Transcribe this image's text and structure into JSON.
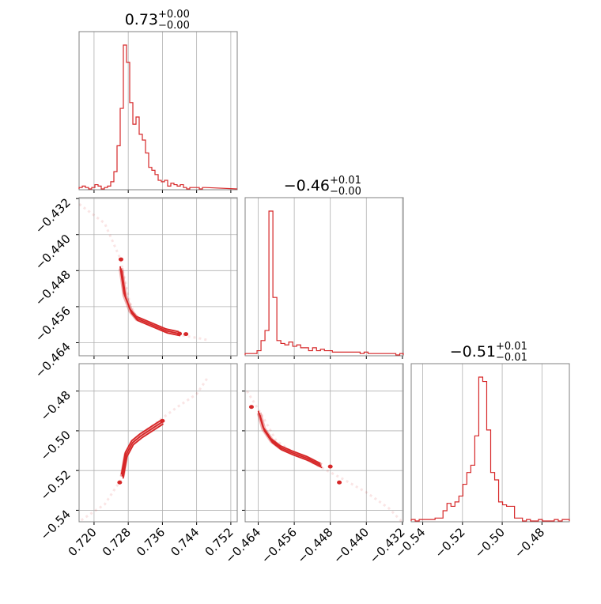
{
  "chart_data": {
    "type": "corner",
    "color": "#d62728",
    "params": [
      {
        "name": "p0",
        "title": {
          "value": "0.73",
          "upper": "+0.00",
          "lower": "−0.00"
        },
        "range": [
          0.7165,
          0.7535
        ],
        "ticks": [
          0.72,
          0.728,
          0.736,
          0.744,
          0.752
        ],
        "tick_labels": [
          "0.720",
          "0.728",
          "0.736",
          "0.744",
          "0.752"
        ],
        "hist": {
          "edges_start": 0.7165,
          "bin_width": 0.00074,
          "counts": [
            1,
            2,
            1,
            0,
            1,
            3,
            2,
            0,
            1,
            2,
            5,
            12,
            30,
            56,
            100,
            88,
            60,
            45,
            50,
            38,
            34,
            25,
            15,
            13,
            10,
            6,
            5,
            6,
            2,
            4,
            3,
            2,
            3,
            1,
            0,
            1,
            1,
            1,
            0,
            1
          ]
        }
      },
      {
        "name": "p1",
        "title": {
          "value": "−0.46",
          "upper": "+0.01",
          "lower": "−0.00"
        },
        "range": [
          -0.4669,
          -0.4318
        ],
        "ticks": [
          -0.464,
          -0.456,
          -0.448,
          -0.44,
          -0.432
        ],
        "tick_labels": [
          "−0.464",
          "−0.456",
          "−0.448",
          "−0.440",
          "−0.432"
        ],
        "hist": {
          "edges_start": -0.4669,
          "bin_width": 0.00088,
          "counts": [
            1,
            1,
            1,
            3,
            10,
            17,
            100,
            40,
            10,
            8,
            7,
            9,
            6,
            7,
            5,
            5,
            3,
            5,
            3,
            4,
            3,
            3,
            2,
            2,
            2,
            2,
            2,
            2,
            2,
            1,
            2,
            1,
            1,
            1,
            1,
            1,
            1,
            1,
            0,
            1
          ]
        }
      },
      {
        "name": "p2",
        "title": {
          "value": "−0.51",
          "upper": "+0.01",
          "lower": "−0.01"
        },
        "range": [
          -0.5458,
          -0.4662
        ],
        "ticks": [
          -0.54,
          -0.52,
          -0.5,
          -0.48
        ],
        "tick_labels": [
          "−0.54",
          "−0.52",
          "−0.50",
          "−0.48"
        ],
        "hist": {
          "edges_start": -0.5458,
          "bin_width": 0.002,
          "counts": [
            1,
            0,
            1,
            1,
            1,
            1,
            2,
            2,
            7,
            12,
            10,
            13,
            17,
            25,
            33,
            38,
            58,
            98,
            95,
            62,
            33,
            28,
            13,
            11,
            10,
            10,
            2,
            2,
            0,
            1,
            0,
            0,
            1,
            0,
            0,
            0,
            1,
            0,
            1,
            1
          ]
        }
      }
    ],
    "pairs": [
      {
        "x": "p0",
        "y": "p1",
        "trend": [
          [
            0.7155,
            -0.4325
          ],
          [
            0.7225,
            -0.4375
          ],
          [
            0.7262,
            -0.4455
          ],
          [
            0.7282,
            -0.4545
          ],
          [
            0.73,
            -0.459
          ],
          [
            0.734,
            -0.4605
          ],
          [
            0.7395,
            -0.4622
          ],
          [
            0.7445,
            -0.463
          ],
          [
            0.7465,
            -0.4634
          ]
        ],
        "core": [
          [
            0.7263,
            -0.4475
          ],
          [
            0.7272,
            -0.4535
          ],
          [
            0.7286,
            -0.457
          ],
          [
            0.73,
            -0.4586
          ],
          [
            0.733,
            -0.4598
          ],
          [
            0.737,
            -0.4614
          ],
          [
            0.74,
            -0.462
          ]
        ],
        "blobs": [
          [
            0.7263,
            -0.4455
          ],
          [
            0.74,
            -0.462
          ],
          [
            0.7415,
            -0.4621
          ]
        ]
      },
      {
        "x": "p0",
        "y": "p2",
        "trend": [
          [
            0.717,
            -0.545
          ],
          [
            0.7225,
            -0.537
          ],
          [
            0.7262,
            -0.525
          ],
          [
            0.7278,
            -0.511
          ],
          [
            0.73,
            -0.503
          ],
          [
            0.7345,
            -0.496
          ],
          [
            0.7395,
            -0.488
          ],
          [
            0.744,
            -0.4815
          ],
          [
            0.7465,
            -0.4735
          ]
        ],
        "core": [
          [
            0.7266,
            -0.523
          ],
          [
            0.7275,
            -0.512
          ],
          [
            0.729,
            -0.506
          ],
          [
            0.731,
            -0.5025
          ],
          [
            0.7335,
            -0.499
          ],
          [
            0.736,
            -0.4955
          ]
        ],
        "blobs": [
          [
            0.726,
            -0.526
          ],
          [
            0.736,
            -0.495
          ]
        ]
      },
      {
        "x": "p1",
        "y": "p2",
        "trend": [
          [
            -0.4665,
            -0.48
          ],
          [
            -0.4632,
            -0.492
          ],
          [
            -0.46,
            -0.505
          ],
          [
            -0.4555,
            -0.512
          ],
          [
            -0.45,
            -0.5185
          ],
          [
            -0.445,
            -0.5245
          ],
          [
            -0.44,
            -0.531
          ],
          [
            -0.435,
            -0.539
          ],
          [
            -0.432,
            -0.546
          ]
        ],
        "core": [
          [
            -0.4638,
            -0.491
          ],
          [
            -0.4628,
            -0.499
          ],
          [
            -0.461,
            -0.505
          ],
          [
            -0.459,
            -0.5085
          ],
          [
            -0.4565,
            -0.511
          ],
          [
            -0.453,
            -0.514
          ],
          [
            -0.45,
            -0.5175
          ]
        ],
        "blobs": [
          [
            -0.4655,
            -0.488
          ],
          [
            -0.448,
            -0.518
          ],
          [
            -0.446,
            -0.526
          ]
        ]
      }
    ]
  }
}
